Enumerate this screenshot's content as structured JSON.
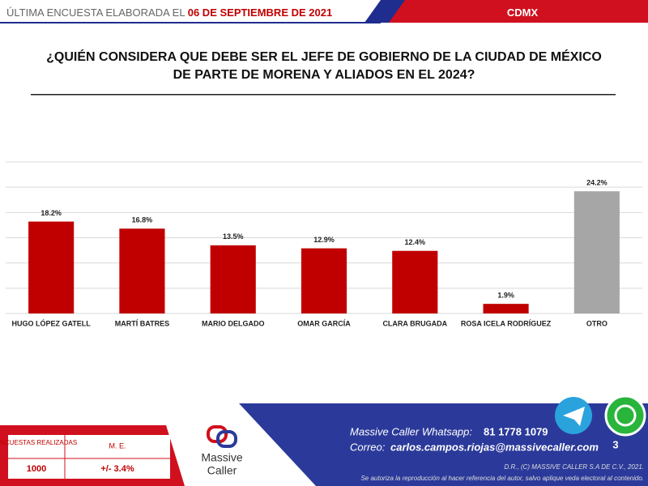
{
  "header": {
    "label": "ÚLTIMA ENCUESTA ELABORADA EL",
    "date": "06 DE SEPTIEMBRE DE 2021",
    "region": "CDMX"
  },
  "chart_data": {
    "type": "bar",
    "title": "¿QUIÉN CONSIDERA QUE DEBE SER EL JEFE DE GOBIERNO DE LA CIUDAD DE MÉXICO DE PARTE DE MORENA Y ALIADOS EN EL 2024?",
    "categories": [
      "HUGO LÓPEZ GATELL",
      "MARTÍ BATRES",
      "MARIO DELGADO",
      "OMAR GARCÍA",
      "CLARA BRUGADA",
      "ROSA ICELA RODRÍGUEZ",
      "OTRO"
    ],
    "values": [
      18.2,
      16.8,
      13.5,
      12.9,
      12.4,
      1.9,
      24.2
    ],
    "value_labels": [
      "18.2%",
      "16.8%",
      "13.5%",
      "12.9%",
      "12.4%",
      "1.9%",
      "24.2%"
    ],
    "colors": [
      "#c00000",
      "#c00000",
      "#c00000",
      "#c00000",
      "#c00000",
      "#c00000",
      "#a6a6a6"
    ],
    "ylim": [
      0,
      30
    ],
    "yticks": [
      0,
      5,
      10,
      15,
      20,
      25,
      30
    ],
    "grid": true
  },
  "footer_table": {
    "headers": [
      "ENCUESTAS REALIZADAS",
      "M. E."
    ],
    "rows": [
      [
        "1000",
        "+/- 3.4%"
      ]
    ]
  },
  "logo": {
    "line1": "Massive",
    "line2": "Caller"
  },
  "contact": {
    "whatsapp_label": "Massive Caller Whatsapp:",
    "whatsapp": "81 1778 1079",
    "email_label": "Correo:",
    "email": "carlos.campos.riojas@massivecaller.com"
  },
  "page_number": "3",
  "legal": {
    "line1": "D.R., (C) MASSIVE CALLER S.A DE C.V., 2021.",
    "line2": "Se autoriza la reproducción al hacer referencia del autor, salvo aplique veda electoral al contenido."
  }
}
